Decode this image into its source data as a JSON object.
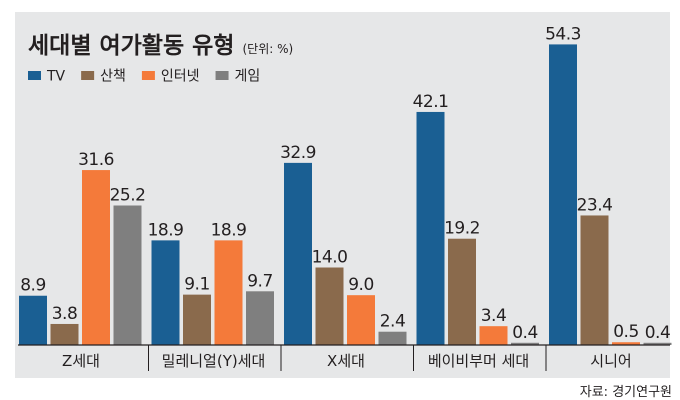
{
  "chart_data": {
    "type": "bar",
    "title": "세대별 여가활동 유형",
    "unit_note": "(단위: %)",
    "source": "자료: 경기연구원",
    "categories": [
      "Z세대",
      "밀레니얼(Y)세대",
      "X세대",
      "베이비부머 세대",
      "시니어"
    ],
    "series": [
      {
        "name": "TV",
        "color": "#1a5f93",
        "values": [
          8.9,
          18.9,
          32.9,
          42.1,
          54.3
        ]
      },
      {
        "name": "산책",
        "color": "#8a6a4c",
        "values": [
          3.8,
          9.1,
          14.0,
          19.2,
          23.4
        ]
      },
      {
        "name": "인터넷",
        "color": "#f47a3a",
        "values": [
          31.6,
          18.9,
          9.0,
          3.4,
          0.5
        ]
      },
      {
        "name": "게임",
        "color": "#7f7f7f",
        "values": [
          25.2,
          9.7,
          2.4,
          0.4,
          0.4
        ]
      }
    ],
    "value_labels": [
      [
        "8.9",
        "18.9",
        "32.9",
        "42.1",
        "54.3"
      ],
      [
        "3.8",
        "9.1",
        "14.0",
        "19.2",
        "23.4"
      ],
      [
        "31.6",
        "18.9",
        "9.0",
        "3.4",
        "0.5"
      ],
      [
        "25.2",
        "9.7",
        "2.4",
        "0.4",
        "0.4"
      ]
    ],
    "ylim": [
      0,
      56
    ],
    "legend_position": "top-left",
    "grid": false,
    "colors": {
      "background": "#ffffff",
      "plot_background": "#e6e7e8"
    }
  }
}
